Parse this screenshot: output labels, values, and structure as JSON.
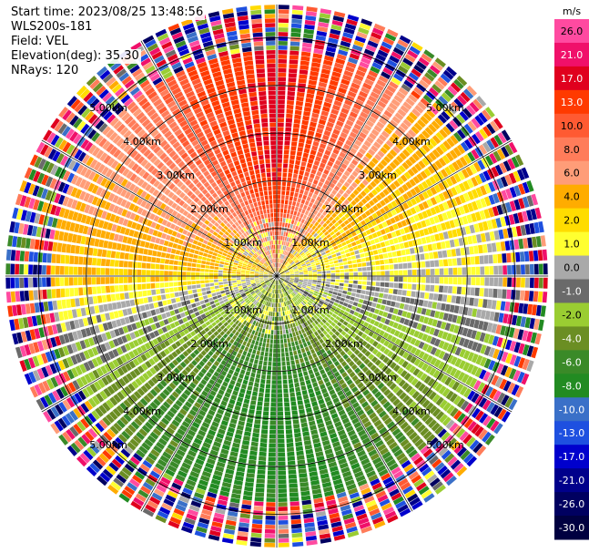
{
  "header": {
    "start_time": "Start time: 2023/08/25 13:48:56",
    "instrument": "WLS200s-181",
    "field": "Field: VEL",
    "elevation": "Elevation(deg): 35.30",
    "nrays": "NRays: 120"
  },
  "chart_data": {
    "type": "ppi-polar",
    "field": "VEL",
    "units": "m/s",
    "nrays": 120,
    "range_rings_km": [
      1,
      2,
      3,
      4,
      5
    ],
    "ring_labels": [
      "1.00km",
      "2.00km",
      "3.00km",
      "4.00km",
      "5.00km"
    ],
    "max_range_km": 5.7,
    "velocity_pattern": {
      "north": 14,
      "north_east": 3,
      "east": 0,
      "south_east": -5,
      "south": -9,
      "south_west": -6,
      "west": 2,
      "north_west": 6
    },
    "noise_beyond_km": 4.7,
    "colorbar": {
      "title": "m/s",
      "ticks": [
        "26.0",
        "21.0",
        "17.0",
        "13.0",
        "10.0",
        "8.0",
        "6.0",
        "4.0",
        "2.0",
        "1.0",
        "0.0",
        "-1.0",
        "-2.0",
        "-4.0",
        "-6.0",
        "-8.0",
        "-10.0",
        "-13.0",
        "-17.0",
        "-21.0",
        "-26.0",
        "-30.0"
      ],
      "colors": [
        "#ff4aa0",
        "#f0106a",
        "#e0001e",
        "#ff3a00",
        "#ff5a32",
        "#ff7c5a",
        "#ff9d78",
        "#ffac00",
        "#ffdc00",
        "#ffff30",
        "#a9a9a9",
        "#6a6a6a",
        "#9acd32",
        "#6b8e23",
        "#3a8a28",
        "#228b22",
        "#3a70c8",
        "#1e50e0",
        "#0000cd",
        "#00008b",
        "#000060",
        "#000040"
      ]
    }
  }
}
